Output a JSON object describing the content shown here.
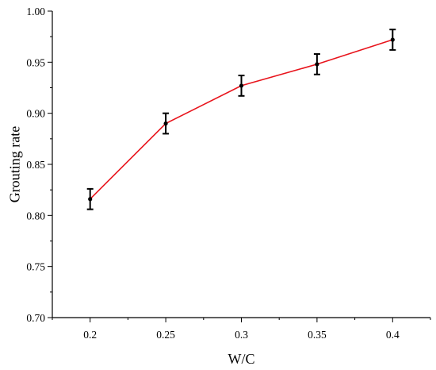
{
  "chart_data": {
    "type": "line",
    "xlabel": "W/C",
    "ylabel": "Grouting rate",
    "x": [
      0.2,
      0.25,
      0.3,
      0.35,
      0.4
    ],
    "x_tick_labels": [
      "0.2",
      "0.25",
      "0.3",
      "0.35",
      "0.4"
    ],
    "xlim": [
      0.175,
      0.425
    ],
    "ylim": [
      0.7,
      1.0
    ],
    "y_ticks": [
      0.7,
      0.75,
      0.8,
      0.85,
      0.9,
      0.95,
      1.0
    ],
    "y_tick_labels": [
      "0.70",
      "0.75",
      "0.80",
      "0.85",
      "0.90",
      "0.95",
      "1.00"
    ],
    "series": [
      {
        "values": [
          0.816,
          0.89,
          0.927,
          0.948,
          0.972
        ],
        "error": [
          0.01,
          0.01,
          0.01,
          0.01,
          0.01
        ],
        "color": "#e8141c",
        "marker_color": "#000000"
      }
    ],
    "grid": false,
    "legend": "none"
  }
}
